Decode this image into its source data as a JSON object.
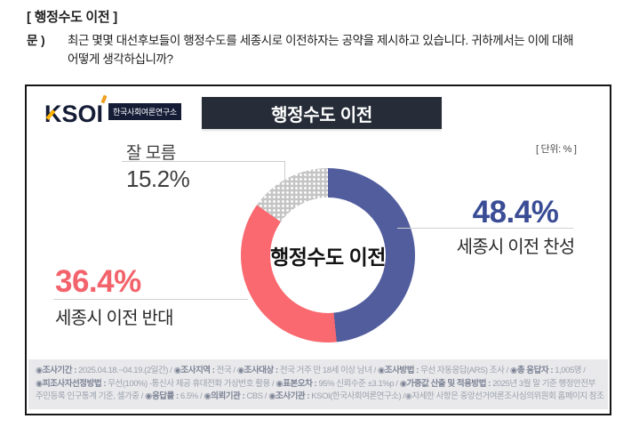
{
  "question": {
    "bracket_title": "[ 행정수도 이전 ]",
    "prefix": "문 )",
    "line1": "최근 몇몇 대선후보들이 행정수도를 세종시로 이전하자는 공약을 제시하고 있습니다. 귀하께서는 이에 대해",
    "line2": "어떻게 생각하십니까?"
  },
  "card": {
    "logo_text": "KSOI",
    "logo_org": "한국사회여론연구소",
    "title": "행정수도 이전",
    "unit_label": "[ 단위: % ]",
    "center_label": "행정수도 이전"
  },
  "chart_data": {
    "type": "pie",
    "donut": true,
    "title": "행정수도 이전",
    "unit": "%",
    "start_angle_deg": 0,
    "direction": "clockwise",
    "segments": [
      {
        "label": "세종시 이전 찬성",
        "value": 48.4,
        "color": "#525d9e"
      },
      {
        "label": "세종시 이전 반대",
        "value": 36.4,
        "color": "#f9696f"
      },
      {
        "label": "잘 모름",
        "value": 15.2,
        "color": "#c5c5c5",
        "pattern": "white-dots"
      }
    ]
  },
  "callouts": {
    "agree": {
      "value": "48.4%",
      "label": "세종시 이전 찬성"
    },
    "oppose": {
      "value": "36.4%",
      "label": "세종시 이전 반대"
    },
    "dontknow": {
      "label": "잘 모름",
      "value": "15.2%"
    }
  },
  "footer": {
    "lines": [
      [
        {
          "t": "◉조사기간 : ",
          "b": true
        },
        {
          "t": "2025.04.18.~04.19.(2일간) / ",
          "b": false
        },
        {
          "t": "◉조사지역 : ",
          "b": true
        },
        {
          "t": "전국 / ",
          "b": false
        },
        {
          "t": "◉조사대상 : ",
          "b": true
        },
        {
          "t": "전국 거주 만 18세 이상 남녀 / ",
          "b": false
        },
        {
          "t": "◉조사방법 : ",
          "b": true
        },
        {
          "t": "무선 자동응답(ARS) 조사 / ",
          "b": false
        },
        {
          "t": "◉총 응답자 : ",
          "b": true
        },
        {
          "t": "1,005명 /",
          "b": false
        }
      ],
      [
        {
          "t": "◉피조사자선정방법 : ",
          "b": true
        },
        {
          "t": "무선(100%) -통신사 제공 휴대전화 가상번호 활용 / ",
          "b": false
        },
        {
          "t": "◉표본오차 : ",
          "b": true
        },
        {
          "t": "95% 신뢰수준 ±3.1%p / ",
          "b": false
        },
        {
          "t": "◉가중값 산출 및 적용방법 : ",
          "b": true
        },
        {
          "t": "2025년 3월 말 기준 행정안전부",
          "b": false
        }
      ],
      [
        {
          "t": "주민등록 인구통계 기준, 셀가중 / ",
          "b": false
        },
        {
          "t": "◉응답률 : ",
          "b": true
        },
        {
          "t": "6.5% / ",
          "b": false
        },
        {
          "t": "◉의뢰기관 : ",
          "b": true
        },
        {
          "t": "CBS / ",
          "b": false
        },
        {
          "t": "◉조사기관 : ",
          "b": true
        },
        {
          "t": "KSOI(한국사회여론연구소) /",
          "b": false
        },
        {
          "t": "◉자세한 사항은 중앙선거여론조사심의위원회 홈페이지 참조",
          "b": false
        }
      ]
    ]
  },
  "colors": {
    "agree_text": "#3a4c95",
    "oppose_text": "#f3636b",
    "title_bar_bg": "#262d38",
    "card_border": "#161616",
    "footer_bg": "#e9e9ec"
  }
}
